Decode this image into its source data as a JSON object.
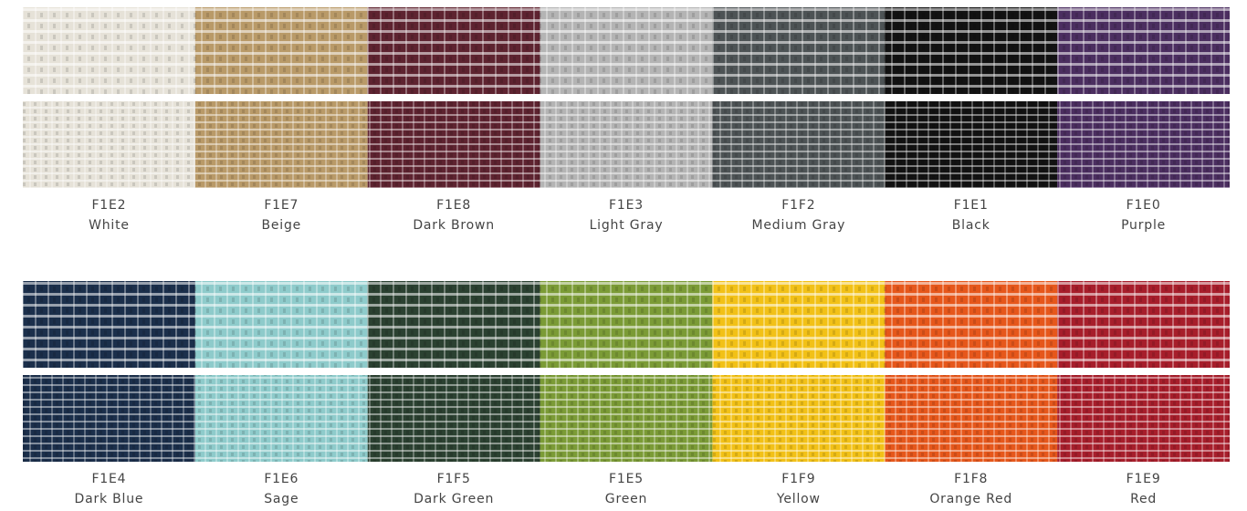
{
  "rows": [
    [
      {
        "code": "F1E2",
        "name": "White",
        "color": "#e6e2d8"
      },
      {
        "code": "F1E7",
        "name": "Beige",
        "color": "#b99a68"
      },
      {
        "code": "F1E8",
        "name": "Dark Brown",
        "color": "#5e2330"
      },
      {
        "code": "F1E3",
        "name": "Light Gray",
        "color": "#b4b4b4"
      },
      {
        "code": "F1F2",
        "name": "Medium Gray",
        "color": "#4d5355"
      },
      {
        "code": "F1E1",
        "name": "Black",
        "color": "#121212"
      },
      {
        "code": "F1E0",
        "name": "Purple",
        "color": "#4b2e60"
      }
    ],
    [
      {
        "code": "F1E4",
        "name": "Dark Blue",
        "color": "#1b2f4b"
      },
      {
        "code": "F1E6",
        "name": "Sage",
        "color": "#8ecbcb"
      },
      {
        "code": "F1F5",
        "name": "Dark Green",
        "color": "#2b4131"
      },
      {
        "code": "F1E5",
        "name": "Green",
        "color": "#7b9b36"
      },
      {
        "code": "F1F9",
        "name": "Yellow",
        "color": "#f2c117"
      },
      {
        "code": "F1F8",
        "name": "Orange Red",
        "color": "#e6571b"
      },
      {
        "code": "F1E9",
        "name": "Red",
        "color": "#a71e2b"
      }
    ]
  ]
}
